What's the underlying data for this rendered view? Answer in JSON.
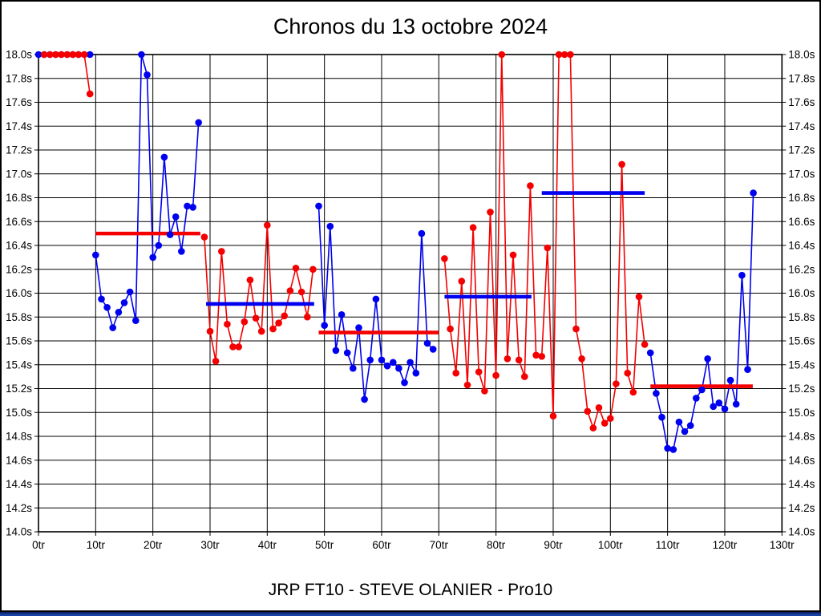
{
  "page": {
    "title": "Chronos du 13 octobre 2024",
    "footer": "JRP FT10 - STEVE OLANIER - Pro10"
  },
  "chart_data": {
    "type": "line",
    "title": "Chronos du 13 octobre 2024",
    "footer_label": "JRP FT10 - STEVE OLANIER - Pro10",
    "x_unit": "tr",
    "y_unit": "s",
    "xlim": [
      0,
      130
    ],
    "ylim": [
      14.0,
      18.0
    ],
    "x_tick_step": 10,
    "y_tick_step": 0.2,
    "grid": true,
    "legend": "none",
    "x_ticks": [
      "0tr",
      "10tr",
      "20tr",
      "30tr",
      "40tr",
      "50tr",
      "60tr",
      "70tr",
      "80tr",
      "90tr",
      "100tr",
      "110tr",
      "120tr",
      "130tr"
    ],
    "y_ticks": [
      "18.0s",
      "17.8s",
      "17.6s",
      "17.4s",
      "17.2s",
      "17.0s",
      "16.8s",
      "16.6s",
      "16.4s",
      "16.2s",
      "16.0s",
      "15.8s",
      "15.6s",
      "15.4s",
      "15.2s",
      "15.0s",
      "14.8s",
      "14.6s",
      "14.4s",
      "14.2s",
      "14.0s"
    ],
    "colors": {
      "blue_series": "#0000f0",
      "red_series": "#f40000",
      "grid": "#000000",
      "text": "#000000",
      "background": "#ffffff",
      "taskbar_edge": "#0a246a",
      "taskbar_body": "#1941a5"
    },
    "series": [
      {
        "name": "relais-1-bleu",
        "color": "blue",
        "points": [
          [
            0,
            18
          ],
          [
            1,
            18
          ],
          [
            2,
            18
          ],
          [
            3,
            18
          ],
          [
            4,
            18
          ],
          [
            5,
            18
          ],
          [
            6,
            18
          ],
          [
            7,
            18
          ],
          [
            8,
            18
          ],
          [
            9,
            18
          ]
        ]
      },
      {
        "name": "relais-1-rouge",
        "color": "red",
        "points": [
          [
            1,
            18
          ],
          [
            2,
            18
          ],
          [
            3,
            18
          ],
          [
            4,
            18
          ],
          [
            5,
            18
          ],
          [
            6,
            18
          ],
          [
            7,
            18
          ],
          [
            8,
            18
          ],
          [
            9,
            17.67
          ]
        ]
      },
      {
        "name": "relais-2-bleu",
        "color": "blue",
        "points": [
          [
            10,
            16.32
          ],
          [
            11,
            15.95
          ],
          [
            12,
            15.88
          ],
          [
            13,
            15.71
          ],
          [
            14,
            15.84
          ],
          [
            15,
            15.92
          ],
          [
            16,
            16.01
          ],
          [
            17,
            15.77
          ],
          [
            18,
            18
          ],
          [
            19,
            17.83
          ],
          [
            20,
            16.3
          ],
          [
            21,
            16.4
          ],
          [
            22,
            17.14
          ],
          [
            23,
            16.49
          ],
          [
            24,
            16.64
          ],
          [
            25,
            16.35
          ],
          [
            26,
            16.73
          ],
          [
            27,
            16.72
          ],
          [
            28,
            17.43
          ]
        ]
      },
      {
        "name": "relais-3-rouge",
        "color": "red",
        "points": [
          [
            29,
            16.47
          ],
          [
            30,
            15.68
          ],
          [
            31,
            15.43
          ],
          [
            32,
            16.35
          ],
          [
            33,
            15.74
          ],
          [
            34,
            15.55
          ],
          [
            35,
            15.55
          ],
          [
            36,
            15.76
          ],
          [
            37,
            16.11
          ],
          [
            38,
            15.79
          ],
          [
            39,
            15.68
          ],
          [
            40,
            16.57
          ],
          [
            41,
            15.7
          ],
          [
            42,
            15.75
          ],
          [
            43,
            15.81
          ],
          [
            44,
            16.02
          ],
          [
            45,
            16.21
          ],
          [
            46,
            16.01
          ],
          [
            47,
            15.8
          ],
          [
            48,
            16.2
          ]
        ]
      },
      {
        "name": "relais-4-bleu",
        "color": "blue",
        "points": [
          [
            49,
            16.73
          ],
          [
            50,
            15.73
          ],
          [
            51,
            16.56
          ],
          [
            52,
            15.52
          ],
          [
            53,
            15.82
          ],
          [
            54,
            15.5
          ],
          [
            55,
            15.37
          ],
          [
            56,
            15.71
          ],
          [
            57,
            15.11
          ],
          [
            58,
            15.44
          ],
          [
            59,
            15.95
          ],
          [
            60,
            15.44
          ],
          [
            61,
            15.39
          ],
          [
            62,
            15.42
          ],
          [
            63,
            15.37
          ],
          [
            64,
            15.25
          ],
          [
            65,
            15.42
          ],
          [
            66,
            15.33
          ],
          [
            67,
            16.5
          ],
          [
            68,
            15.58
          ],
          [
            69,
            15.53
          ]
        ]
      },
      {
        "name": "relais-5-rouge",
        "color": "red",
        "points": [
          [
            71,
            16.29
          ],
          [
            72,
            15.7
          ],
          [
            73,
            15.33
          ],
          [
            74,
            16.1
          ],
          [
            75,
            15.23
          ],
          [
            76,
            16.55
          ],
          [
            77,
            15.34
          ],
          [
            78,
            15.18
          ],
          [
            79,
            16.68
          ],
          [
            80,
            15.31
          ],
          [
            81,
            18
          ],
          [
            82,
            15.45
          ],
          [
            83,
            16.32
          ],
          [
            84,
            15.44
          ],
          [
            85,
            15.3
          ],
          [
            86,
            16.9
          ],
          [
            87,
            15.48
          ],
          [
            88,
            15.47
          ],
          [
            89,
            16.38
          ],
          [
            90,
            14.97
          ],
          [
            91,
            18
          ],
          [
            92,
            18
          ],
          [
            93,
            18
          ],
          [
            94,
            15.7
          ],
          [
            95,
            15.45
          ],
          [
            96,
            15.01
          ],
          [
            97,
            14.87
          ],
          [
            98,
            15.04
          ],
          [
            99,
            14.91
          ],
          [
            100,
            14.95
          ],
          [
            101,
            15.24
          ],
          [
            102,
            17.08
          ],
          [
            103,
            15.33
          ],
          [
            104,
            15.17
          ],
          [
            105,
            15.97
          ],
          [
            106,
            15.57
          ]
        ]
      },
      {
        "name": "relais-6-bleu",
        "color": "blue",
        "points": [
          [
            107,
            15.5
          ],
          [
            108,
            15.16
          ],
          [
            109,
            14.96
          ],
          [
            110,
            14.7
          ],
          [
            111,
            14.69
          ],
          [
            112,
            14.92
          ],
          [
            113,
            14.84
          ],
          [
            114,
            14.89
          ],
          [
            115,
            15.12
          ],
          [
            116,
            15.19
          ],
          [
            117,
            15.45
          ],
          [
            118,
            15.05
          ],
          [
            119,
            15.08
          ],
          [
            120,
            15.03
          ],
          [
            121,
            15.27
          ],
          [
            122,
            15.07
          ],
          [
            123,
            16.15
          ],
          [
            124,
            15.36
          ],
          [
            125,
            16.84
          ]
        ]
      },
      {
        "name": "moyenne-1",
        "color": "red",
        "type": "average",
        "value": 16.5,
        "x_start": 10,
        "x_end": 28.3
      },
      {
        "name": "moyenne-2",
        "color": "blue",
        "type": "average",
        "value": 15.91,
        "x_start": 29.3,
        "x_end": 48.2
      },
      {
        "name": "moyenne-3",
        "color": "red",
        "type": "average",
        "value": 15.67,
        "x_start": 49,
        "x_end": 70
      },
      {
        "name": "moyenne-4",
        "color": "blue",
        "type": "average",
        "value": 15.97,
        "x_start": 71,
        "x_end": 86.2
      },
      {
        "name": "moyenne-5",
        "color": "blue",
        "type": "average",
        "value": 16.84,
        "x_start": 88,
        "x_end": 106
      },
      {
        "name": "moyenne-6",
        "color": "red",
        "type": "average",
        "value": 15.22,
        "x_start": 107,
        "x_end": 124.9
      }
    ]
  }
}
